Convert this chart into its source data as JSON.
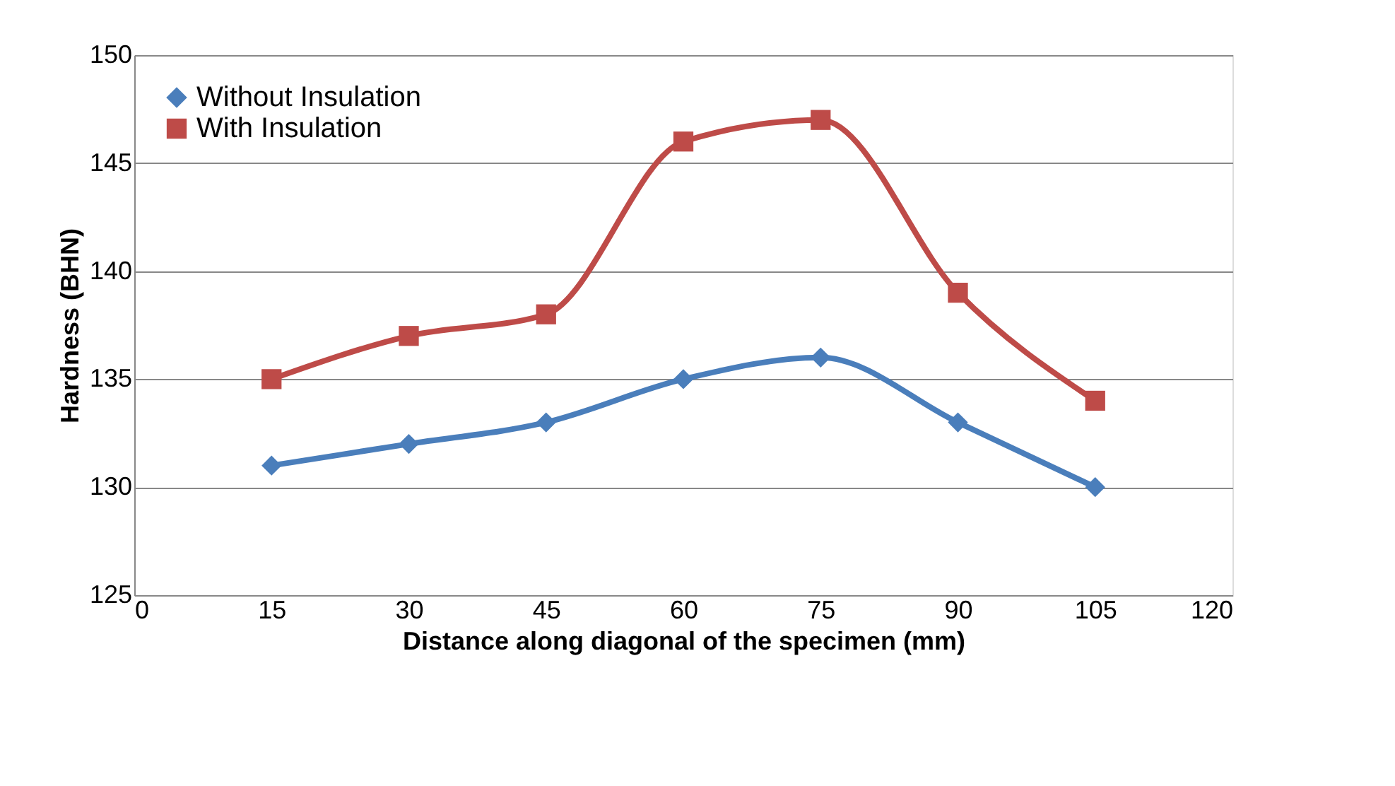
{
  "chart_data": {
    "type": "line",
    "xlabel": "Distance along diagonal of the specimen (mm)",
    "ylabel": "Hardness (BHN)",
    "x": [
      15,
      30,
      45,
      60,
      75,
      90,
      105
    ],
    "series": [
      {
        "name": "Without Insulation",
        "color": "#4a7ebb",
        "marker": "diamond",
        "values": [
          131,
          132,
          133,
          135,
          136,
          133,
          130
        ]
      },
      {
        "name": "With Insulation",
        "color": "#be4b48",
        "marker": "square",
        "values": [
          135,
          137,
          138,
          146,
          147,
          139,
          134
        ]
      }
    ],
    "xlim": [
      0,
      120
    ],
    "xticks": [
      0,
      15,
      30,
      45,
      60,
      75,
      90,
      105,
      120
    ],
    "ylim": [
      125,
      150
    ],
    "yticks": [
      125,
      130,
      135,
      140,
      145,
      150
    ],
    "grid": "y",
    "legend": "top left",
    "line_style": "solid"
  }
}
